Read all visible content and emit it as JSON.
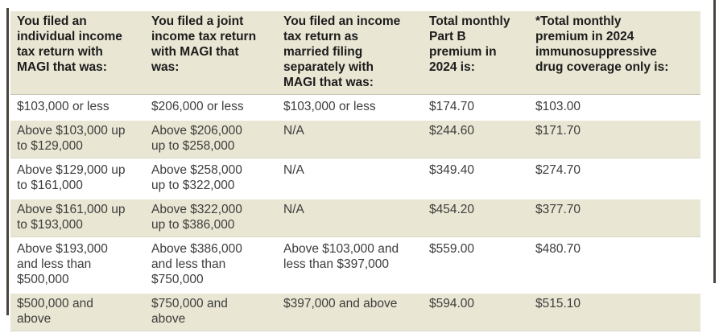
{
  "table": {
    "headers": [
      "You filed an\nindividual income\ntax return with\nMAGI that was:",
      "You filed a joint\nincome tax return\nwith MAGI that\nwas:",
      "You filed an income\ntax return as\nmarried filing\nseparately with\nMAGI that was:",
      "Total monthly\nPart B\npremium in\n2024 is:",
      "*Total monthly\npremium in 2024\nimmunosuppressive\ndrug coverage only is:"
    ],
    "rows": [
      {
        "individual": "$103,000 or less",
        "joint": "$206,000 or less",
        "separate": "$103,000 or less",
        "part_b_premium": "$174.70",
        "immuno_premium": "$103.00"
      },
      {
        "individual": "Above $103,000 up\nto $129,000",
        "joint": "Above $206,000\nup to $258,000",
        "separate": "N/A",
        "part_b_premium": "$244.60",
        "immuno_premium": "$171.70"
      },
      {
        "individual": "Above $129,000 up\nto $161,000",
        "joint": "Above $258,000\nup to $322,000",
        "separate": "N/A",
        "part_b_premium": "$349.40",
        "immuno_premium": "$274.70"
      },
      {
        "individual": "Above $161,000 up\nto $193,000",
        "joint": "Above $322,000\nup to $386,000",
        "separate": "N/A",
        "part_b_premium": "$454.20",
        "immuno_premium": "$377.70"
      },
      {
        "individual": "Above $193,000\nand less than\n$500,000",
        "joint": "Above $386,000\nand less than\n$750,000",
        "separate": "Above $103,000 and\nless than $397,000",
        "part_b_premium": "$559.00",
        "immuno_premium": "$480.70"
      },
      {
        "individual": "$500,000 and\nabove",
        "joint": "$750,000 and\nabove",
        "separate": "$397,000 and above",
        "part_b_premium": "$594.00",
        "immuno_premium": "$515.10"
      }
    ],
    "colors": {
      "stripe_bg": "#e9e6d3",
      "header_bg": "#e9e6d3",
      "row_bg": "#ffffff",
      "header_text": "#1c1c1c",
      "body_text": "#3d3d3d",
      "edge_line": "#4a443f",
      "header_rule": "#c9c6b3"
    }
  }
}
